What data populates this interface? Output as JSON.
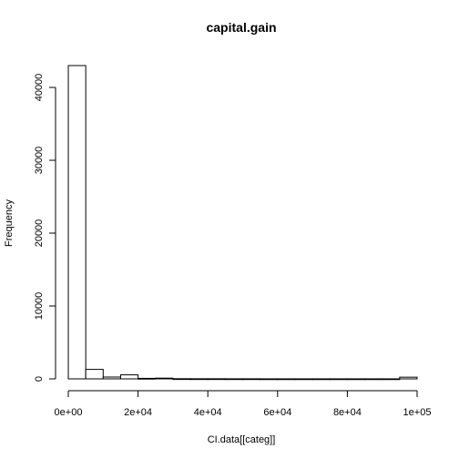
{
  "chart_data": {
    "type": "bar",
    "title": "capital.gain",
    "xlabel": "CI.data[[categ]]",
    "ylabel": "Frequency",
    "bin_width": 5000,
    "bins": [
      {
        "x0": 0,
        "x1": 5000,
        "count": 43000
      },
      {
        "x0": 5000,
        "x1": 10000,
        "count": 1300
      },
      {
        "x0": 10000,
        "x1": 15000,
        "count": 250
      },
      {
        "x0": 15000,
        "x1": 20000,
        "count": 550
      },
      {
        "x0": 20000,
        "x1": 25000,
        "count": 70
      },
      {
        "x0": 25000,
        "x1": 30000,
        "count": 100
      },
      {
        "x0": 30000,
        "x1": 35000,
        "count": 20
      },
      {
        "x0": 35000,
        "x1": 40000,
        "count": 15
      },
      {
        "x0": 40000,
        "x1": 45000,
        "count": 15
      },
      {
        "x0": 45000,
        "x1": 50000,
        "count": 10
      },
      {
        "x0": 50000,
        "x1": 55000,
        "count": 10
      },
      {
        "x0": 55000,
        "x1": 60000,
        "count": 5
      },
      {
        "x0": 60000,
        "x1": 65000,
        "count": 5
      },
      {
        "x0": 65000,
        "x1": 70000,
        "count": 5
      },
      {
        "x0": 70000,
        "x1": 75000,
        "count": 5
      },
      {
        "x0": 75000,
        "x1": 80000,
        "count": 5
      },
      {
        "x0": 80000,
        "x1": 85000,
        "count": 5
      },
      {
        "x0": 85000,
        "x1": 90000,
        "count": 5
      },
      {
        "x0": 90000,
        "x1": 95000,
        "count": 5
      },
      {
        "x0": 95000,
        "x1": 100000,
        "count": 230
      }
    ],
    "xlim": [
      0,
      100000
    ],
    "ylim": [
      0,
      43000
    ],
    "x_ticks": [
      0,
      20000,
      40000,
      60000,
      80000,
      100000
    ],
    "x_tick_labels": [
      "0e+00",
      "2e+04",
      "4e+04",
      "6e+04",
      "8e+04",
      "1e+05"
    ],
    "y_ticks": [
      0,
      10000,
      20000,
      30000,
      40000
    ],
    "y_tick_labels": [
      "0",
      "10000",
      "20000",
      "30000",
      "40000"
    ],
    "grid": false
  }
}
